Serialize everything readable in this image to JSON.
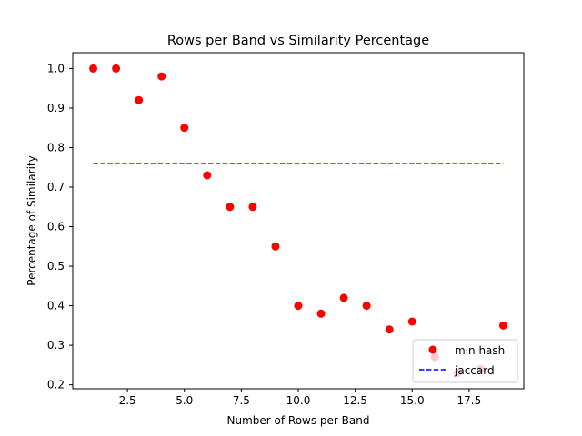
{
  "chart_data": {
    "type": "scatter",
    "title": "Rows per Band vs Similarity Percentage",
    "xlabel": "Number of Rows per Band",
    "ylabel": "Percentage of Similarity",
    "xlim": [
      0.1,
      19.9
    ],
    "ylim": [
      0.19,
      1.04
    ],
    "x_ticks": [
      2.5,
      5.0,
      7.5,
      10.0,
      12.5,
      15.0,
      17.5
    ],
    "x_tick_labels": [
      "2.5",
      "5.0",
      "7.5",
      "10.0",
      "12.5",
      "15.0",
      "17.5"
    ],
    "y_ticks": [
      0.2,
      0.3,
      0.4,
      0.5,
      0.6,
      0.7,
      0.8,
      0.9,
      1.0
    ],
    "y_tick_labels": [
      "0.2",
      "0.3",
      "0.4",
      "0.5",
      "0.6",
      "0.7",
      "0.8",
      "0.9",
      "1.0"
    ],
    "grid": false,
    "legend_position": "lower-right",
    "series": [
      {
        "name": "min hash",
        "kind": "scatter",
        "color": "#ff0000",
        "x": [
          1,
          2,
          3,
          4,
          5,
          6,
          7,
          8,
          9,
          10,
          11,
          12,
          13,
          14,
          15,
          16,
          17,
          18,
          19
        ],
        "y": [
          1.0,
          1.0,
          0.92,
          0.98,
          0.85,
          0.73,
          0.65,
          0.65,
          0.55,
          0.4,
          0.38,
          0.42,
          0.4,
          0.34,
          0.36,
          0.27,
          0.23,
          0.24,
          0.35
        ]
      },
      {
        "name": "jaccard",
        "kind": "dashed-line",
        "color": "#0000ff",
        "x": [
          1,
          19
        ],
        "y": [
          0.76,
          0.76
        ]
      }
    ]
  }
}
